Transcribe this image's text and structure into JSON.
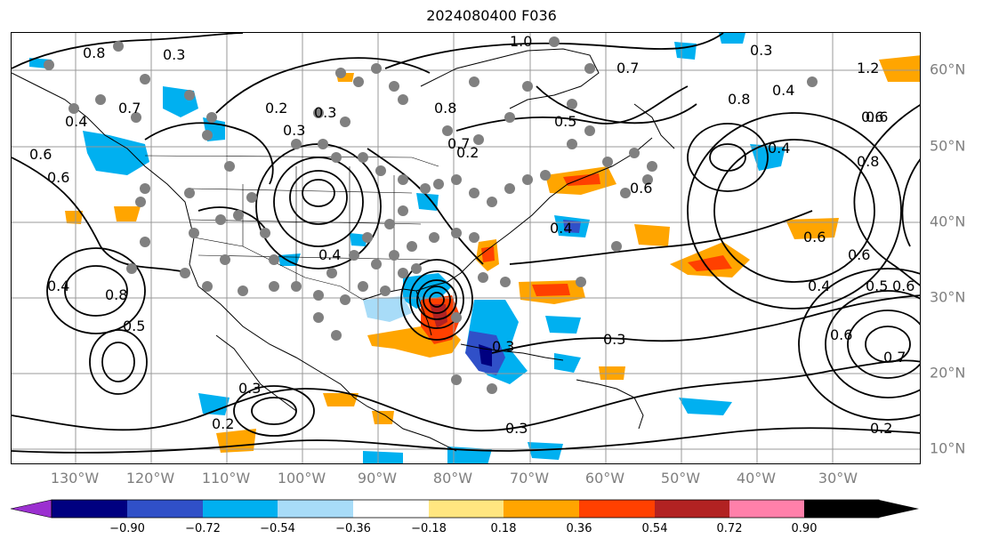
{
  "title": "2024080400 F036",
  "lon_labels": [
    "130°W",
    "120°W",
    "110°W",
    "100°W",
    "90°W",
    "80°W",
    "70°W",
    "60°W",
    "50°W",
    "40°W",
    "30°W"
  ],
  "lat_labels": [
    "60°N",
    "50°N",
    "40°N",
    "30°N",
    "20°N",
    "10°N"
  ],
  "colorbar": {
    "ticks": [
      "−0.90",
      "−0.72",
      "−0.54",
      "−0.36",
      "−0.18",
      "0.18",
      "0.36",
      "0.54",
      "0.72",
      "0.90"
    ],
    "colors": [
      "#9b30d0",
      "#000080",
      "#3050c8",
      "#00b0f0",
      "#a8dcf8",
      "#ffffff",
      "#ffe680",
      "#ffa500",
      "#ff4000",
      "#b22222",
      "#ff80aa"
    ]
  },
  "contour_labels": [
    "0.8",
    "0.7",
    "0.4",
    "0.6",
    "0.3",
    "0.2",
    "0.4",
    "0.5",
    "0.3",
    "0.2",
    "0.8",
    "1.0",
    "0.5",
    "0.7",
    "0.8",
    "0.3",
    "0.6",
    "0.6",
    "0.4",
    "0.6",
    "0.4",
    "0.5",
    "0.6",
    "0.4",
    "0.3",
    "0.3",
    "0.4",
    "0.6",
    "0.3",
    "0.7",
    "1.2",
    "0.6",
    "0.8",
    "0.3",
    "0.2",
    "0.6",
    "0.4",
    "0.6",
    "0.8",
    "0.7",
    "0.3",
    "0.2"
  ],
  "legend_colors": {
    "contour": "#000000",
    "station": "#808080",
    "grid": "#999999"
  }
}
